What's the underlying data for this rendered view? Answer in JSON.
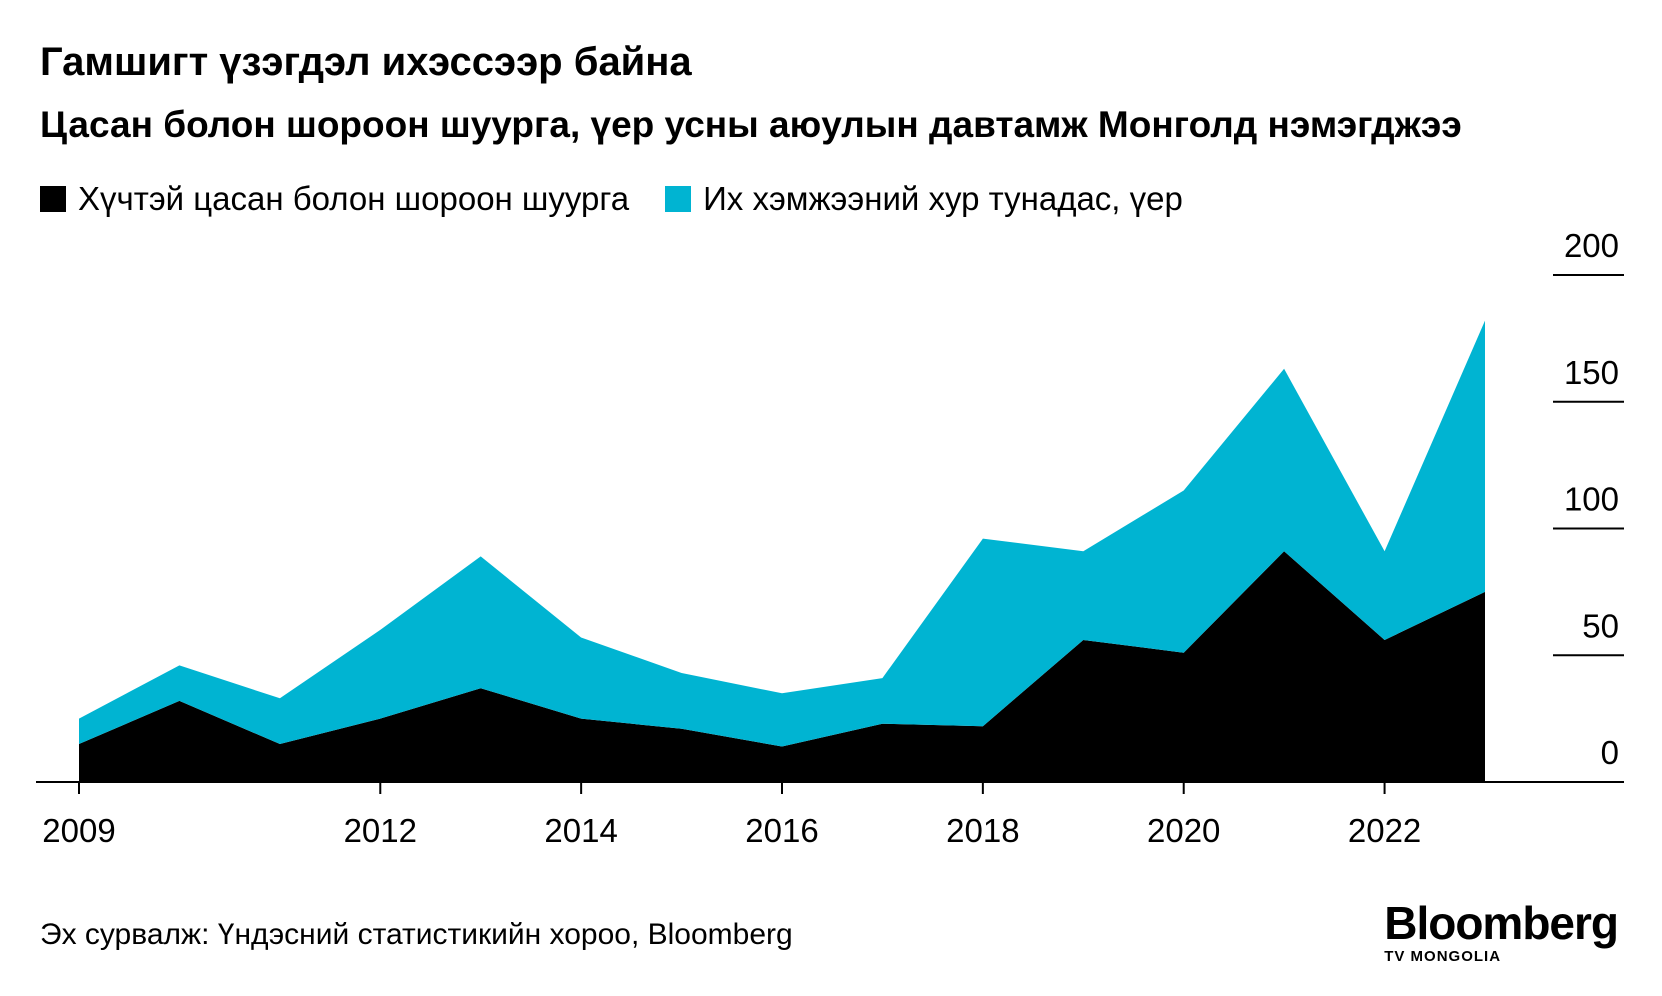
{
  "header": {
    "title": "Гамшигт үзэгдэл ихэссээр байна",
    "subtitle": "Цасан болон шороон шуурга, үер усны аюулын давтамж Монголд нэмэгджээ"
  },
  "legend": {
    "items": [
      {
        "label": "Хүчтэй цасан болон шороон шуурга",
        "color": "#000000"
      },
      {
        "label": "Их хэмжээний хур тунадас, үер",
        "color": "#00b4d2"
      }
    ]
  },
  "footer": {
    "source": "Эх сурвалж: Үндэсний статистикийн хороо, Bloomberg",
    "logo_main": "Bloomberg",
    "logo_sub": "TV MONGOLIA"
  },
  "chart_data": {
    "type": "area",
    "stacked": true,
    "x": [
      2009,
      2010,
      2011,
      2012,
      2013,
      2014,
      2015,
      2016,
      2017,
      2018,
      2019,
      2020,
      2021,
      2022,
      2023
    ],
    "x_ticks": [
      "2009",
      "2012",
      "2014",
      "2016",
      "2018",
      "2020",
      "2022"
    ],
    "y_ticks": [
      "0",
      "50",
      "100",
      "150",
      "200"
    ],
    "ylim": [
      0,
      200
    ],
    "series": [
      {
        "name": "Хүчтэй цасан болон шороон шуурга",
        "color": "#000000",
        "values": [
          15,
          32,
          15,
          25,
          37,
          25,
          21,
          14,
          23,
          22,
          56,
          51,
          91,
          56,
          75
        ]
      },
      {
        "name": "Их хэмжээний хур тунадас, үер",
        "color": "#00b4d2",
        "values": [
          10,
          14,
          18,
          35,
          52,
          32,
          22,
          21,
          18,
          74,
          35,
          64,
          72,
          35,
          107
        ]
      }
    ],
    "grid": false,
    "y_axis_position": "right"
  }
}
